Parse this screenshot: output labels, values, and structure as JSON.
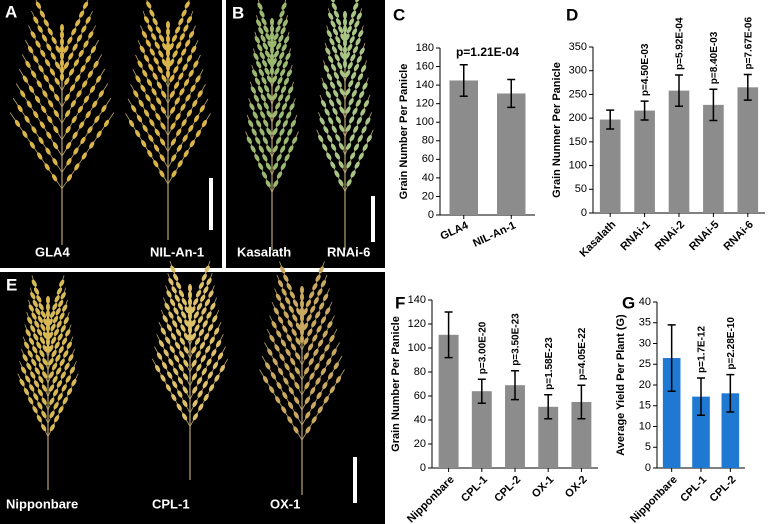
{
  "photos": [
    {
      "panel": "A",
      "captions": [
        "GLA4",
        "NIL-An-1"
      ]
    },
    {
      "panel": "B",
      "captions": [
        "Kasalath",
        "RNAi-6"
      ]
    },
    {
      "panel": "E",
      "captions": [
        "Nipponbare",
        "CPL-1",
        "OX-1"
      ]
    }
  ],
  "chart_data": [
    {
      "type": "bar",
      "panel": "C",
      "ylabel": "Grain Number Per Panicle",
      "categories": [
        "GLA4",
        "NIL-An-1"
      ],
      "values": [
        145,
        131
      ],
      "errors": [
        17,
        15
      ],
      "color": "#8c8c8c",
      "ylim": [
        0,
        180
      ],
      "yticks": [
        0,
        20,
        40,
        60,
        80,
        100,
        120,
        140,
        160,
        180
      ],
      "annotation": "p=1.21E-04"
    },
    {
      "type": "bar",
      "panel": "D",
      "ylabel": "Grain Nunmer Per Panicle",
      "categories": [
        "Kasalath",
        "RNAi-1",
        "RNAi-2",
        "RNAi-5",
        "RNAi-6"
      ],
      "values": [
        197,
        216,
        258,
        228,
        265
      ],
      "errors": [
        20,
        20,
        33,
        33,
        27
      ],
      "color": "#8c8c8c",
      "ylim": [
        0,
        350
      ],
      "yticks": [
        0,
        50,
        100,
        150,
        200,
        250,
        300,
        350
      ],
      "annotations": [
        null,
        "p=4.50E-03",
        "p=5.92E-04",
        "p=8.40E-03",
        "p=7.67E-06"
      ]
    },
    {
      "type": "bar",
      "panel": "F",
      "ylabel": "Grain Number Per Panicle",
      "categories": [
        "Nipponbare",
        "CPL-1",
        "CPL-2",
        "OX-1",
        "OX-2"
      ],
      "values": [
        111,
        64,
        69,
        51,
        55
      ],
      "errors": [
        19,
        10,
        12,
        10,
        14
      ],
      "color": "#8c8c8c",
      "ylim": [
        0,
        140
      ],
      "yticks": [
        0,
        20,
        40,
        60,
        80,
        100,
        120,
        140
      ],
      "annotations": [
        null,
        "p=3.00E-20",
        "p=3.50E-23",
        "p=1.58E-23",
        "p=4.05E-22"
      ]
    },
    {
      "type": "bar",
      "panel": "G",
      "ylabel": "Average Yield Per Plant (G)",
      "categories": [
        "Nipponbare",
        "CPL-1",
        "CPL-2"
      ],
      "values": [
        26.5,
        17.2,
        18
      ],
      "errors": [
        8,
        4.5,
        4.5
      ],
      "color": "#1f78d1",
      "ylim": [
        0,
        40
      ],
      "yticks": [
        0,
        5,
        10,
        15,
        20,
        25,
        30,
        35,
        40
      ],
      "annotations": [
        null,
        "p=1.7E-12",
        "p=2.28E-10"
      ]
    }
  ]
}
